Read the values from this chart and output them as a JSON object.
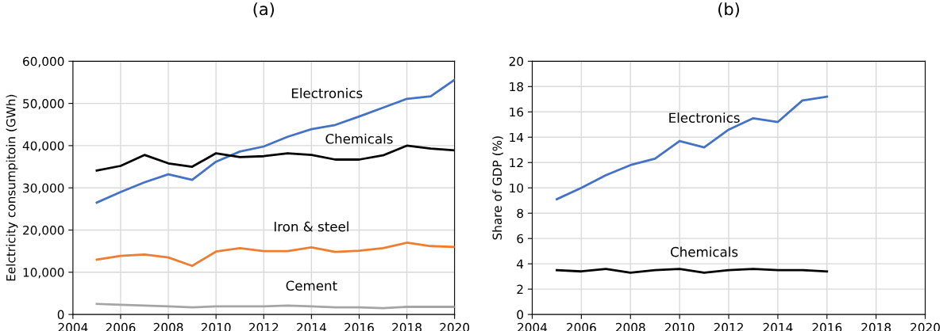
{
  "chart_data": [
    {
      "type": "line",
      "title": "(a)",
      "ylabel": "Eelctricity consumpitoin (GWh)",
      "x": [
        2005,
        2006,
        2007,
        2008,
        2009,
        2010,
        2011,
        2012,
        2013,
        2014,
        2015,
        2016,
        2017,
        2018,
        2019,
        2020
      ],
      "series": [
        {
          "name": "Electronics",
          "color": "#4472c4",
          "values": [
            26500,
            29000,
            31300,
            33200,
            31900,
            36200,
            38600,
            39800,
            42100,
            43900,
            44900,
            46900,
            49000,
            51100,
            51700,
            55600
          ]
        },
        {
          "name": "Chemicals",
          "color": "#000000",
          "values": [
            34100,
            35200,
            37800,
            35800,
            35000,
            38200,
            37300,
            37500,
            38200,
            37800,
            36700,
            36700,
            37700,
            40000,
            39300,
            38900
          ]
        },
        {
          "name": "Iron & steel",
          "color": "#ed7d31",
          "values": [
            13000,
            13900,
            14200,
            13500,
            11500,
            14900,
            15700,
            15000,
            15000,
            15900,
            14800,
            15100,
            15700,
            17000,
            16200,
            16000
          ]
        },
        {
          "name": "Cement",
          "color": "#a5a5a5",
          "values": [
            2500,
            2300,
            2100,
            1900,
            1700,
            1900,
            1900,
            1900,
            2100,
            1900,
            1700,
            1700,
            1500,
            1800,
            1800,
            1800
          ]
        }
      ],
      "xlim": [
        2004,
        2020
      ],
      "xticks": [
        2004,
        2006,
        2008,
        2010,
        2012,
        2014,
        2016,
        2018,
        2020
      ],
      "ylim": [
        0,
        60000
      ],
      "yticks": [
        0,
        {
          "value": 10000,
          "label": "10,000"
        },
        {
          "value": 20000,
          "label": "20,000"
        },
        {
          "value": 30000,
          "label": "30,000"
        },
        {
          "value": 40000,
          "label": "40,000"
        },
        {
          "value": 50000,
          "label": "50,000"
        },
        {
          "value": 60000,
          "label": "60,000"
        }
      ],
      "grid": true,
      "legend": false,
      "marker": "none",
      "line_style": "solid"
    },
    {
      "type": "line",
      "title": "(b)",
      "ylabel": "Share of GDP (%)",
      "x": [
        2005,
        2006,
        2007,
        2008,
        2009,
        2010,
        2011,
        2012,
        2013,
        2014,
        2015,
        2016
      ],
      "series": [
        {
          "name": "Electronics",
          "color": "#4472c4",
          "values": [
            9.1,
            10.0,
            11.0,
            11.8,
            12.3,
            13.7,
            13.2,
            14.6,
            15.5,
            15.2,
            16.9,
            17.2
          ]
        },
        {
          "name": "Chemicals",
          "color": "#000000",
          "values": [
            3.5,
            3.4,
            3.6,
            3.3,
            3.5,
            3.6,
            3.3,
            3.5,
            3.6,
            3.5,
            3.5,
            3.4
          ]
        }
      ],
      "xlim": [
        2004,
        2020
      ],
      "xticks": [
        2004,
        2006,
        2008,
        2010,
        2012,
        2014,
        2016,
        2018,
        2020
      ],
      "ylim": [
        0,
        20
      ],
      "yticks": [
        0,
        2,
        4,
        6,
        8,
        10,
        12,
        14,
        16,
        18,
        20
      ],
      "grid": true,
      "legend": false,
      "marker": "none",
      "line_style": "solid"
    }
  ]
}
